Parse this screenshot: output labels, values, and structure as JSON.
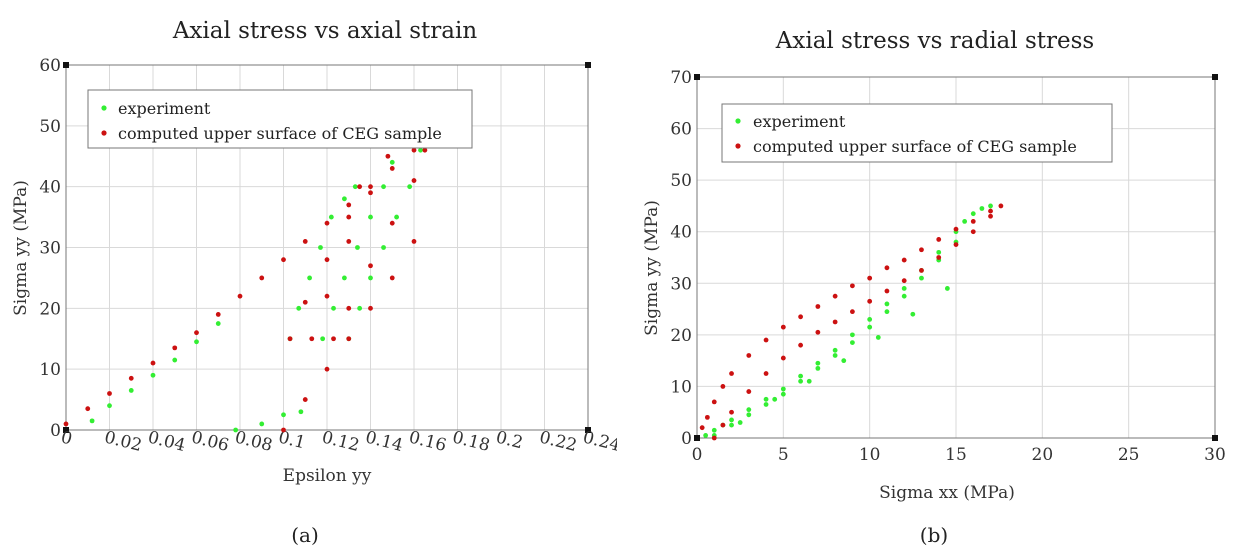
{
  "chart_data": [
    {
      "type": "scatter",
      "title": "Axial stress vs axial strain",
      "xlabel": "Epsilon yy",
      "ylabel": "Sigma yy (MPa)",
      "caption": "(a)",
      "xlim": [
        0,
        0.24
      ],
      "ylim": [
        0,
        60
      ],
      "grid": true,
      "legend_position": "top-left",
      "xticks": [
        "0",
        "0.02",
        "0.04",
        "0.06",
        "0.08",
        "0.1",
        "0.12",
        "0.14",
        "0.16",
        "0.18",
        "0.2",
        "0.22",
        "0.24"
      ],
      "yticks": [
        "0",
        "10",
        "20",
        "30",
        "40",
        "50",
        "60"
      ],
      "series": [
        {
          "name": "experiment",
          "color": "#33ee33",
          "x": [
            0.012,
            0.02,
            0.03,
            0.04,
            0.05,
            0.06,
            0.07,
            0.078,
            0.09,
            0.1,
            0.108,
            0.103,
            0.107,
            0.112,
            0.117,
            0.122,
            0.128,
            0.133,
            0.118,
            0.123,
            0.128,
            0.134,
            0.14,
            0.146,
            0.15,
            0.13,
            0.135,
            0.14,
            0.146,
            0.152,
            0.158,
            0.163
          ],
          "y": [
            1.5,
            4,
            6.5,
            9,
            11.5,
            14.5,
            17.5,
            0,
            1,
            2.5,
            3,
            15,
            20,
            25,
            30,
            35,
            38,
            40,
            15,
            20,
            25,
            30,
            35,
            40,
            44,
            15,
            20,
            25,
            30,
            35,
            40,
            46
          ]
        },
        {
          "name": "computed upper surface of CEG sample",
          "color": "#cc1111",
          "x": [
            0,
            0.01,
            0.02,
            0.03,
            0.04,
            0.05,
            0.06,
            0.07,
            0.08,
            0.09,
            0.1,
            0.11,
            0.12,
            0.13,
            0.14,
            0.15,
            0.16,
            0.1,
            0.11,
            0.12,
            0.13,
            0.14,
            0.15,
            0.16,
            0.103,
            0.11,
            0.12,
            0.13,
            0.135,
            0.113,
            0.12,
            0.13,
            0.14,
            0.148,
            0.123,
            0.13,
            0.14,
            0.15,
            0.16,
            0.165
          ],
          "y": [
            1,
            3.5,
            6,
            8.5,
            11,
            13.5,
            16,
            19,
            22,
            25,
            28,
            31,
            34,
            37,
            40,
            43,
            46,
            0,
            5,
            10,
            15,
            20,
            25,
            31,
            15,
            21,
            28,
            35,
            40,
            15,
            22,
            31,
            39,
            45,
            15,
            20,
            27,
            34,
            41,
            46
          ]
        }
      ]
    },
    {
      "type": "scatter",
      "title": "Axial stress vs radial stress",
      "xlabel": "Sigma xx (MPa)",
      "ylabel": "Sigma yy (MPa)",
      "caption": "(b)",
      "xlim": [
        0,
        30
      ],
      "ylim": [
        0,
        70
      ],
      "grid": true,
      "legend_position": "top-left",
      "xticks": [
        "0",
        "5",
        "10",
        "15",
        "20",
        "25",
        "30"
      ],
      "yticks": [
        "0",
        "10",
        "20",
        "30",
        "40",
        "50",
        "60",
        "70"
      ],
      "series": [
        {
          "name": "experiment",
          "color": "#33ee33",
          "x": [
            0.5,
            1,
            1.5,
            2,
            3,
            4,
            5,
            6,
            7,
            8,
            9,
            10,
            11,
            12,
            13,
            14,
            15,
            15.5,
            16,
            16.5,
            17,
            1,
            2,
            3,
            4,
            5,
            6,
            7,
            8,
            9,
            10,
            11,
            12,
            13,
            14,
            15,
            2.5,
            4.5,
            6.5,
            8.5,
            10.5,
            12.5,
            14.5
          ],
          "y": [
            0.5,
            1.5,
            2.5,
            3.5,
            5.5,
            7.5,
            9.5,
            12,
            14.5,
            17,
            20,
            23,
            26,
            29,
            32.5,
            36,
            40,
            42,
            43.5,
            44.5,
            45,
            0.5,
            2.5,
            4.5,
            6.5,
            8.5,
            11,
            13.5,
            16,
            18.5,
            21.5,
            24.5,
            27.5,
            31,
            34.5,
            38,
            3,
            7.5,
            11,
            15,
            19.5,
            24,
            29
          ]
        },
        {
          "name": "computed upper surface of CEG sample",
          "color": "#cc1111",
          "x": [
            0.3,
            0.6,
            1,
            1.5,
            2,
            3,
            4,
            5,
            6,
            7,
            8,
            9,
            10,
            11,
            12,
            13,
            14,
            15,
            16,
            17,
            17.6,
            1,
            1.5,
            2,
            3,
            4,
            5,
            6,
            7,
            8,
            9,
            10,
            11,
            12,
            13,
            14,
            15,
            16,
            17
          ],
          "y": [
            2,
            4,
            7,
            10,
            12.5,
            16,
            19,
            21.5,
            23.5,
            25.5,
            27.5,
            29.5,
            31,
            33,
            34.5,
            36.5,
            38.5,
            40.5,
            42,
            44,
            45,
            0,
            2.5,
            5,
            9,
            12.5,
            15.5,
            18,
            20.5,
            22.5,
            24.5,
            26.5,
            28.5,
            30.5,
            32.5,
            35,
            37.5,
            40,
            43
          ]
        }
      ]
    }
  ]
}
